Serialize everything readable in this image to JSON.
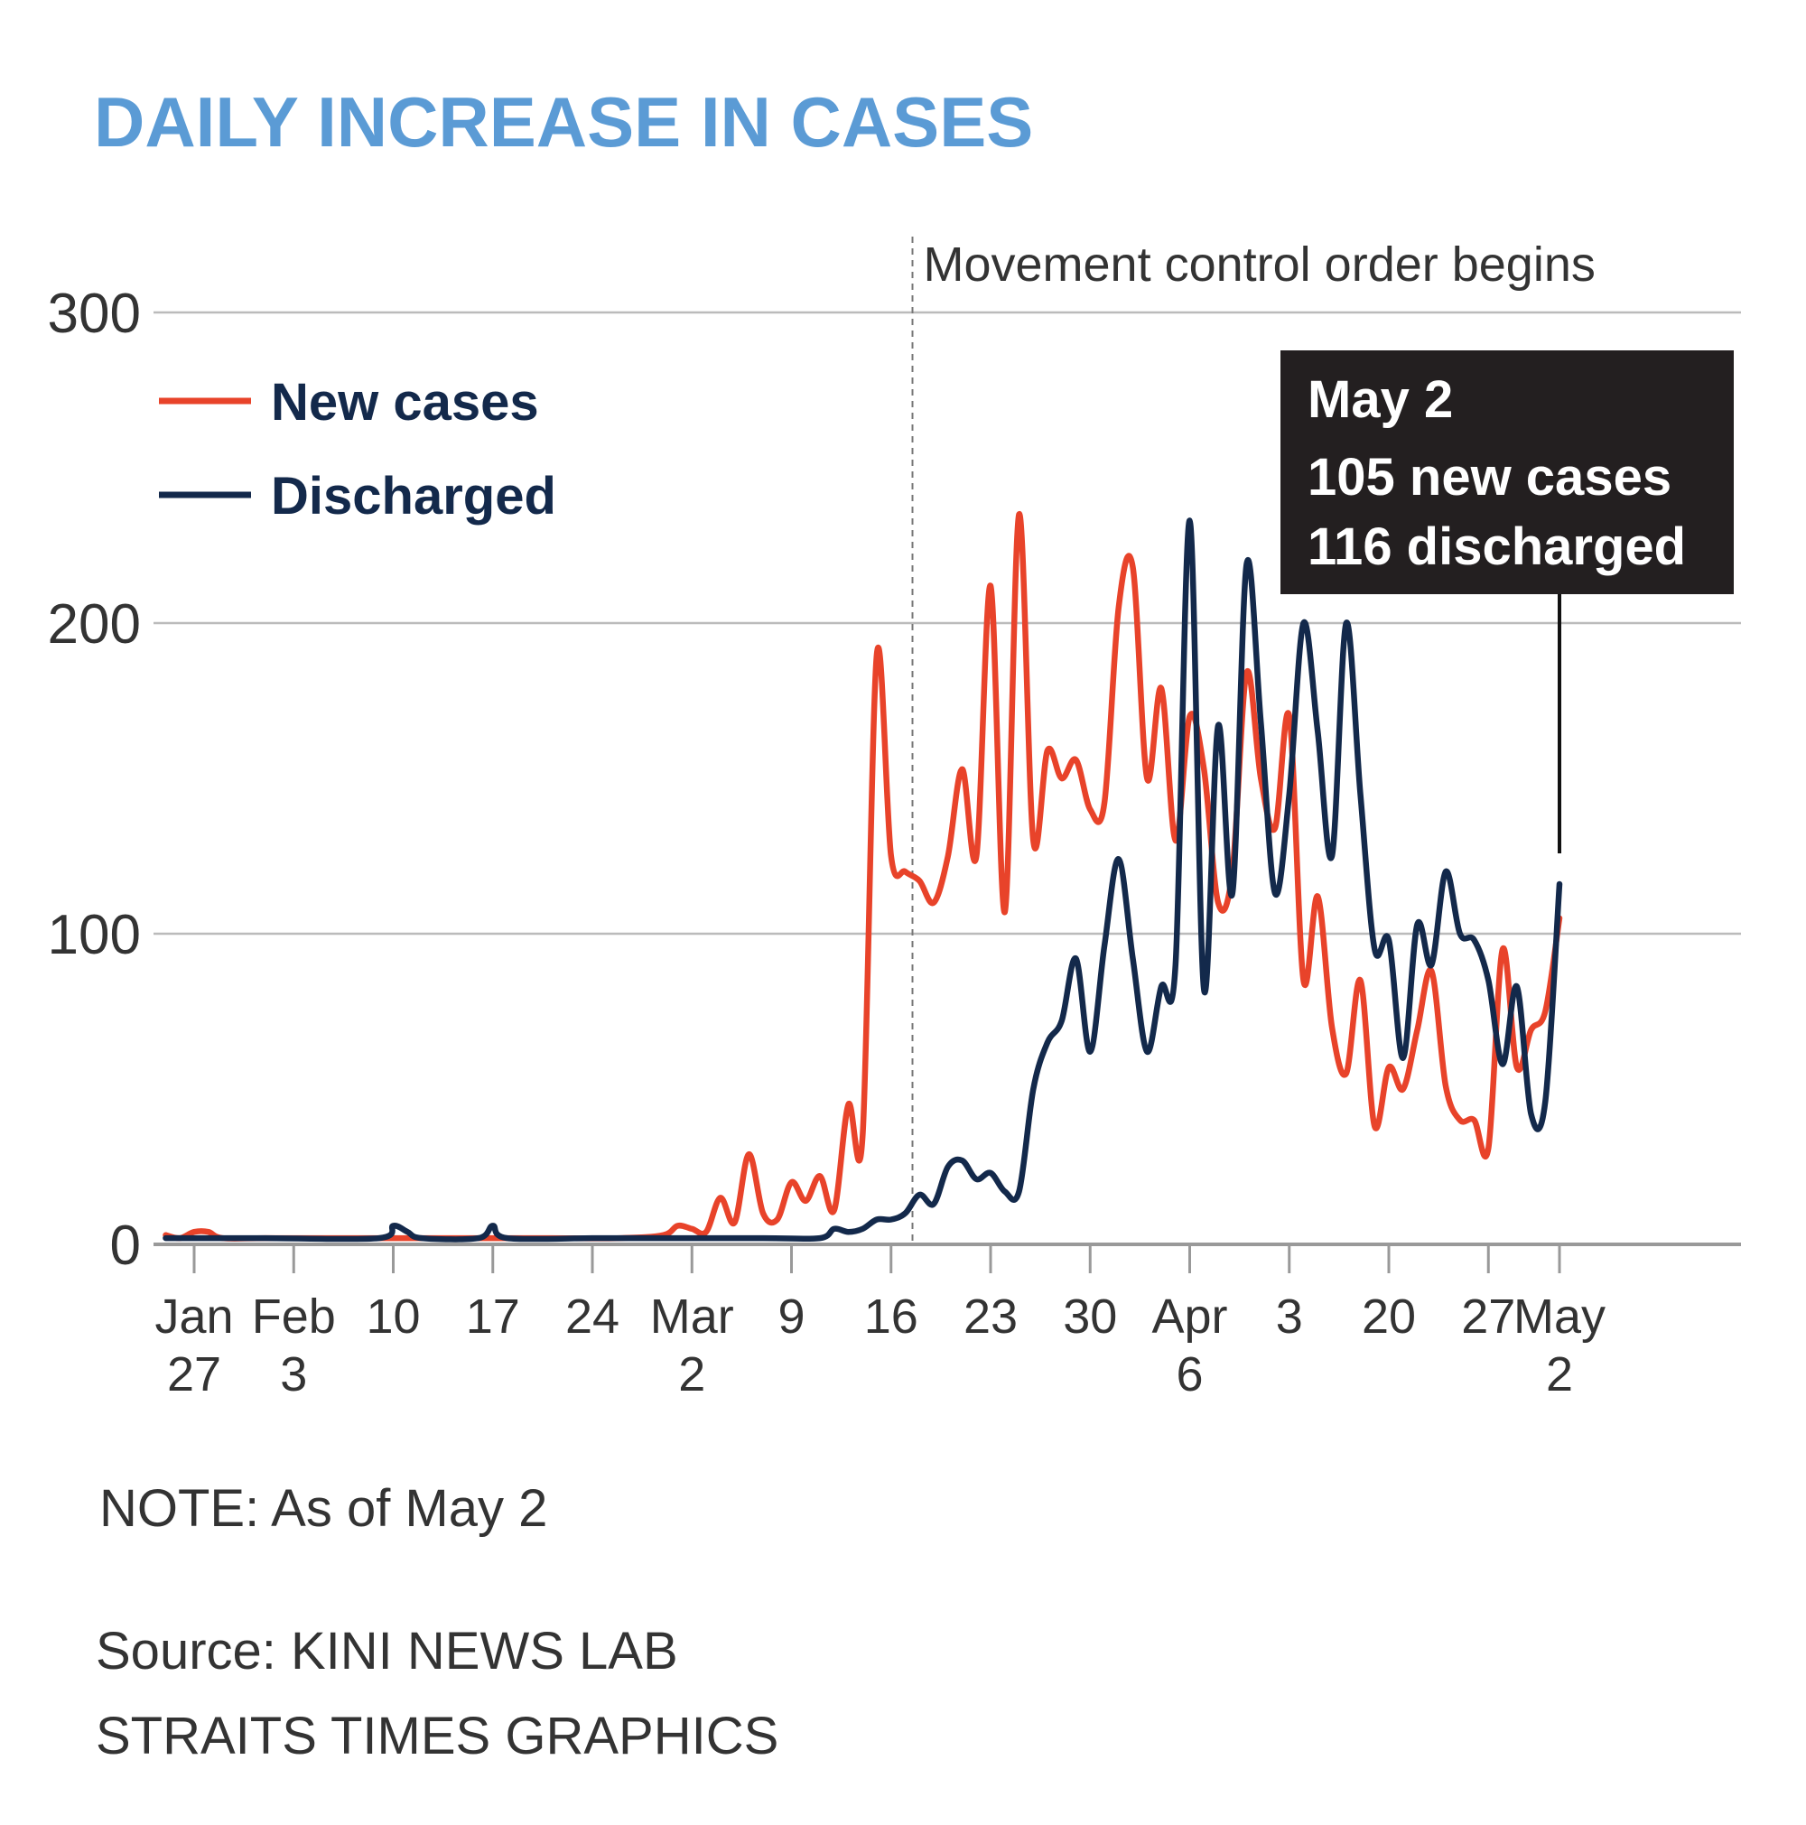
{
  "chart_data": {
    "type": "line",
    "title": "DAILY INCREASE IN CASES",
    "ylim": [
      0,
      300
    ],
    "yticks": [
      "0",
      "100",
      "200",
      "300"
    ],
    "x_start_day": -3,
    "x_end_day": 96,
    "xticks": [
      {
        "day": 0,
        "line1": "Jan",
        "line2": "27"
      },
      {
        "day": 7,
        "line1": "Feb",
        "line2": "3"
      },
      {
        "day": 14,
        "line1": "10",
        "line2": ""
      },
      {
        "day": 21,
        "line1": "17",
        "line2": ""
      },
      {
        "day": 28,
        "line1": "24",
        "line2": ""
      },
      {
        "day": 35,
        "line1": "Mar",
        "line2": "2"
      },
      {
        "day": 42,
        "line1": "9",
        "line2": ""
      },
      {
        "day": 49,
        "line1": "16",
        "line2": ""
      },
      {
        "day": 56,
        "line1": "23",
        "line2": ""
      },
      {
        "day": 63,
        "line1": "30",
        "line2": ""
      },
      {
        "day": 70,
        "line1": "Apr",
        "line2": "6"
      },
      {
        "day": 77,
        "line1": "3",
        "line2": ""
      },
      {
        "day": 84,
        "line1": "20",
        "line2": ""
      },
      {
        "day": 91,
        "line1": "27",
        "line2": ""
      },
      {
        "day": 96,
        "line1": "May",
        "line2": "2"
      }
    ],
    "series": [
      {
        "name": "New cases",
        "color": "#e8432a",
        "points": [
          [
            -2,
            3
          ],
          [
            -1,
            2
          ],
          [
            0,
            4
          ],
          [
            1,
            4
          ],
          [
            2,
            2
          ],
          [
            5,
            2
          ],
          [
            10,
            2
          ],
          [
            15,
            2
          ],
          [
            20,
            2
          ],
          [
            25,
            2
          ],
          [
            30,
            2
          ],
          [
            33,
            3
          ],
          [
            34,
            6
          ],
          [
            35,
            5
          ],
          [
            36,
            4
          ],
          [
            37,
            15
          ],
          [
            38,
            7
          ],
          [
            39,
            29
          ],
          [
            40,
            10
          ],
          [
            41,
            8
          ],
          [
            42,
            20
          ],
          [
            43,
            14
          ],
          [
            44,
            22
          ],
          [
            45,
            11
          ],
          [
            46,
            45
          ],
          [
            47,
            35
          ],
          [
            48,
            190
          ],
          [
            49,
            125
          ],
          [
            50,
            120
          ],
          [
            51,
            117
          ],
          [
            52,
            110
          ],
          [
            53,
            125
          ],
          [
            54,
            153
          ],
          [
            55,
            125
          ],
          [
            56,
            212
          ],
          [
            57,
            107
          ],
          [
            58,
            235
          ],
          [
            59,
            130
          ],
          [
            60,
            159
          ],
          [
            61,
            150
          ],
          [
            62,
            156
          ],
          [
            63,
            140
          ],
          [
            64,
            142
          ],
          [
            65,
            205
          ],
          [
            66,
            218
          ],
          [
            67,
            150
          ],
          [
            68,
            179
          ],
          [
            69,
            130
          ],
          [
            70,
            170
          ],
          [
            71,
            153
          ],
          [
            72,
            110
          ],
          [
            73,
            120
          ],
          [
            74,
            184
          ],
          [
            75,
            150
          ],
          [
            76,
            134
          ],
          [
            77,
            170
          ],
          [
            78,
            85
          ],
          [
            79,
            112
          ],
          [
            80,
            70
          ],
          [
            81,
            55
          ],
          [
            82,
            85
          ],
          [
            83,
            38
          ],
          [
            84,
            57
          ],
          [
            85,
            50
          ],
          [
            86,
            69
          ],
          [
            87,
            88
          ],
          [
            88,
            51
          ],
          [
            89,
            40
          ],
          [
            90,
            40
          ],
          [
            91,
            31
          ],
          [
            92,
            95
          ],
          [
            93,
            57
          ],
          [
            94,
            69
          ],
          [
            95,
            75
          ],
          [
            96,
            105
          ]
        ]
      },
      {
        "name": "Discharged",
        "color": "#13294b",
        "points": [
          [
            -2,
            2
          ],
          [
            5,
            2
          ],
          [
            13,
            2
          ],
          [
            14,
            6
          ],
          [
            15,
            4
          ],
          [
            16,
            2
          ],
          [
            20,
            2
          ],
          [
            21,
            6
          ],
          [
            22,
            2
          ],
          [
            28,
            2
          ],
          [
            32,
            2
          ],
          [
            40,
            2
          ],
          [
            44,
            2
          ],
          [
            45,
            5
          ],
          [
            46,
            4
          ],
          [
            47,
            5
          ],
          [
            48,
            8
          ],
          [
            49,
            8
          ],
          [
            50,
            10
          ],
          [
            51,
            16
          ],
          [
            52,
            13
          ],
          [
            53,
            25
          ],
          [
            54,
            27
          ],
          [
            55,
            21
          ],
          [
            56,
            23
          ],
          [
            57,
            17
          ],
          [
            58,
            17
          ],
          [
            59,
            50
          ],
          [
            60,
            65
          ],
          [
            61,
            72
          ],
          [
            62,
            92
          ],
          [
            63,
            62
          ],
          [
            64,
            96
          ],
          [
            65,
            124
          ],
          [
            66,
            92
          ],
          [
            67,
            62
          ],
          [
            68,
            83
          ],
          [
            69,
            90
          ],
          [
            70,
            233
          ],
          [
            71,
            82
          ],
          [
            72,
            167
          ],
          [
            73,
            113
          ],
          [
            74,
            219
          ],
          [
            75,
            168
          ],
          [
            76,
            113
          ],
          [
            77,
            145
          ],
          [
            78,
            200
          ],
          [
            79,
            165
          ],
          [
            80,
            125
          ],
          [
            81,
            200
          ],
          [
            82,
            145
          ],
          [
            83,
            95
          ],
          [
            84,
            98
          ],
          [
            85,
            60
          ],
          [
            86,
            103
          ],
          [
            87,
            90
          ],
          [
            88,
            120
          ],
          [
            89,
            100
          ],
          [
            90,
            98
          ],
          [
            91,
            85
          ],
          [
            92,
            58
          ],
          [
            93,
            83
          ],
          [
            94,
            42
          ],
          [
            95,
            46
          ],
          [
            96,
            116
          ]
        ]
      }
    ],
    "legend": [
      {
        "label": "New cases",
        "color": "#e8432a"
      },
      {
        "label": "Discharged",
        "color": "#13294b"
      }
    ],
    "event_line": {
      "day": 50,
      "label": "Movement control order begins"
    },
    "callout": {
      "day": 96,
      "lines": [
        "May 2",
        "105 new cases",
        "116 discharged"
      ]
    }
  },
  "footer": {
    "note": "NOTE: As of May 2",
    "source": "Source: KINI NEWS LAB",
    "credit": "STRAITS TIMES GRAPHICS"
  },
  "colors": {
    "title": "#5b9bd5",
    "grid": "#bbbbbb",
    "axis": "#999999",
    "callout_bg": "#231f20",
    "legend_text": "#13294b"
  }
}
